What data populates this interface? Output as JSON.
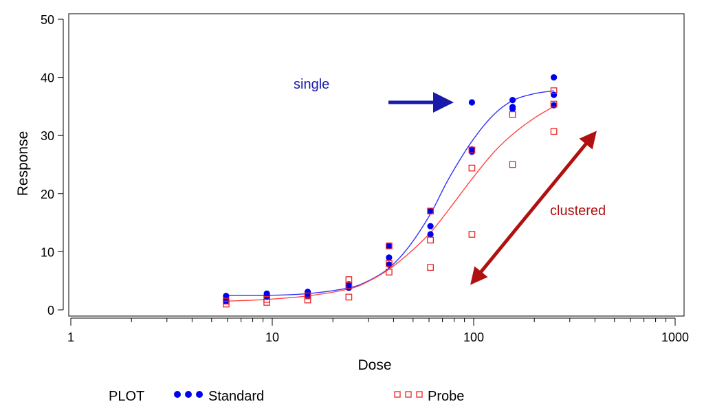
{
  "chart_data": {
    "type": "scatter",
    "xlabel": "Dose",
    "ylabel": "Response",
    "xscale": "log",
    "xlim": [
      1,
      1000
    ],
    "ylim": [
      0,
      50
    ],
    "x_ticks": [
      1,
      10,
      100,
      1000
    ],
    "x_tick_labels": [
      "1",
      "10",
      "100",
      "1000"
    ],
    "y_ticks": [
      0,
      10,
      20,
      30,
      40,
      50
    ],
    "y_tick_labels": [
      "0",
      "10",
      "20",
      "30",
      "40",
      "50"
    ],
    "grid": false,
    "legend": {
      "title": "PLOT",
      "placement": "bottom",
      "entries": [
        "Standard",
        "Probe"
      ]
    },
    "series": [
      {
        "name": "Standard",
        "marker": "filled-circle",
        "color": "#0000ee",
        "points": [
          [
            5.9,
            2.4
          ],
          [
            5.9,
            1.8
          ],
          [
            5.9,
            1.5
          ],
          [
            9.4,
            2.8
          ],
          [
            9.4,
            2.5
          ],
          [
            9.4,
            2.2
          ],
          [
            15,
            3.1
          ],
          [
            15,
            2.7
          ],
          [
            15,
            2.4
          ],
          [
            24,
            4.4
          ],
          [
            24,
            4.0
          ],
          [
            24,
            3.8
          ],
          [
            38,
            11.0
          ],
          [
            38,
            9.0
          ],
          [
            38,
            7.8
          ],
          [
            61,
            17.0
          ],
          [
            61,
            14.4
          ],
          [
            61,
            13.0
          ],
          [
            98,
            35.7
          ],
          [
            98,
            27.6
          ],
          [
            98,
            27.2
          ],
          [
            156,
            36.1
          ],
          [
            156,
            34.9
          ],
          [
            156,
            34.6
          ],
          [
            250,
            40.0
          ],
          [
            250,
            37.0
          ],
          [
            250,
            35.2
          ]
        ],
        "fit_curve": [
          [
            5.9,
            2.5
          ],
          [
            9.4,
            2.5
          ],
          [
            15,
            2.8
          ],
          [
            24,
            3.8
          ],
          [
            30,
            5.0
          ],
          [
            38,
            7.2
          ],
          [
            48,
            11.0
          ],
          [
            61,
            16.5
          ],
          [
            75,
            22.5
          ],
          [
            98,
            29.0
          ],
          [
            125,
            33.5
          ],
          [
            156,
            36.0
          ],
          [
            200,
            37.2
          ],
          [
            250,
            37.7
          ]
        ],
        "fit_color": "#3333ff"
      },
      {
        "name": "Probe",
        "marker": "open-square",
        "color": "#ee2222",
        "points": [
          [
            5.9,
            1.5
          ],
          [
            5.9,
            1.0
          ],
          [
            9.4,
            1.8
          ],
          [
            9.4,
            1.3
          ],
          [
            15,
            2.4
          ],
          [
            15,
            1.7
          ],
          [
            24,
            5.2
          ],
          [
            24,
            4.2
          ],
          [
            24,
            2.2
          ],
          [
            38,
            11.0
          ],
          [
            38,
            8.0
          ],
          [
            38,
            6.5
          ],
          [
            61,
            17.0
          ],
          [
            61,
            12.0
          ],
          [
            61,
            7.3
          ],
          [
            98,
            27.5
          ],
          [
            98,
            24.4
          ],
          [
            98,
            13.0
          ],
          [
            156,
            33.6
          ],
          [
            156,
            25.0
          ],
          [
            250,
            37.7
          ],
          [
            250,
            35.4
          ],
          [
            250,
            30.7
          ]
        ],
        "fit_curve": [
          [
            5.9,
            1.5
          ],
          [
            9.4,
            1.8
          ],
          [
            15,
            2.4
          ],
          [
            24,
            3.6
          ],
          [
            30,
            4.9
          ],
          [
            38,
            7.0
          ],
          [
            48,
            9.8
          ],
          [
            61,
            13.3
          ],
          [
            75,
            17.2
          ],
          [
            98,
            22.5
          ],
          [
            125,
            27.0
          ],
          [
            156,
            30.2
          ],
          [
            200,
            33.0
          ],
          [
            250,
            35.0
          ]
        ],
        "fit_color": "#ff4444"
      }
    ],
    "annotations": [
      {
        "text": "single",
        "color": "#1a1aaa"
      },
      {
        "text": "clustered",
        "color": "#b01010"
      }
    ]
  },
  "colors": {
    "axis": "#000000",
    "single_arrow": "#1a1aaa",
    "clustered_arrow": "#b01010"
  }
}
